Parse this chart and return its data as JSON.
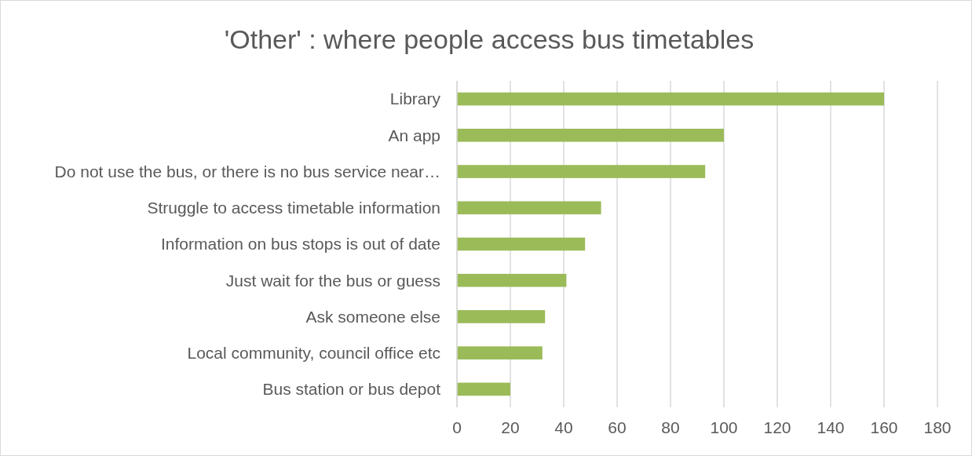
{
  "chart_data": {
    "type": "bar",
    "orientation": "horizontal",
    "title": "'Other' : where people access bus timetables",
    "categories": [
      "Library",
      "An app",
      "Do not use the bus, or there is no bus service near…",
      "Struggle to access timetable information",
      "Information on bus stops is out of date",
      "Just wait for the bus or guess",
      "Ask someone else",
      "Local community, council office etc",
      "Bus station or bus depot"
    ],
    "values": [
      160,
      100,
      93,
      54,
      48,
      41,
      33,
      32,
      20
    ],
    "color": "#9bbb59",
    "xlim": [
      0,
      180
    ],
    "xticks": [
      0,
      20,
      40,
      60,
      80,
      100,
      120,
      140,
      160,
      180
    ],
    "grid": "x"
  }
}
